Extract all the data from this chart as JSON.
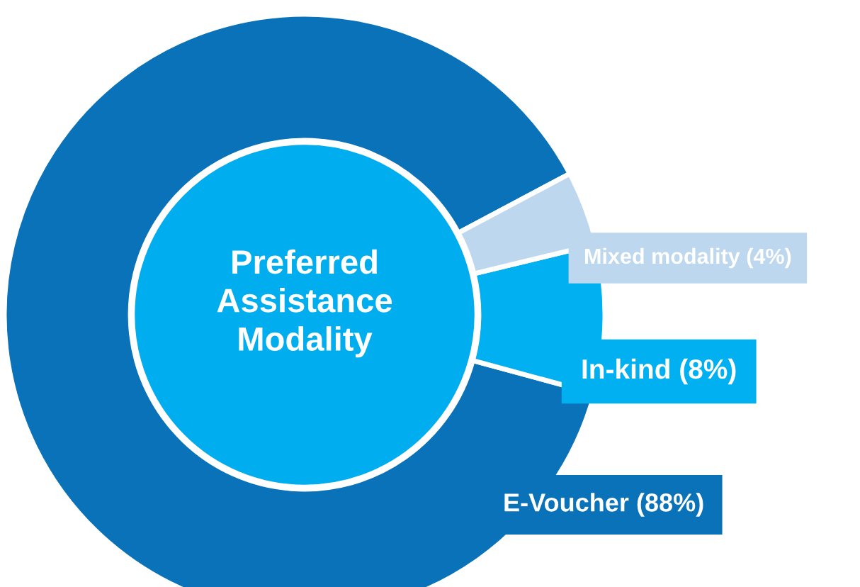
{
  "chart_data": {
    "type": "donut",
    "title": "Preferred Assistance Modality",
    "categories": [
      "E-Voucher",
      "In-kind",
      "Mixed modality"
    ],
    "values": [
      88,
      8,
      4
    ],
    "value_labels": [
      "(88%)",
      "(8%)",
      "(4%)"
    ],
    "colors": [
      "#0a72b8",
      "#00b0f0",
      "#bdd7ee"
    ],
    "legend": false
  }
}
